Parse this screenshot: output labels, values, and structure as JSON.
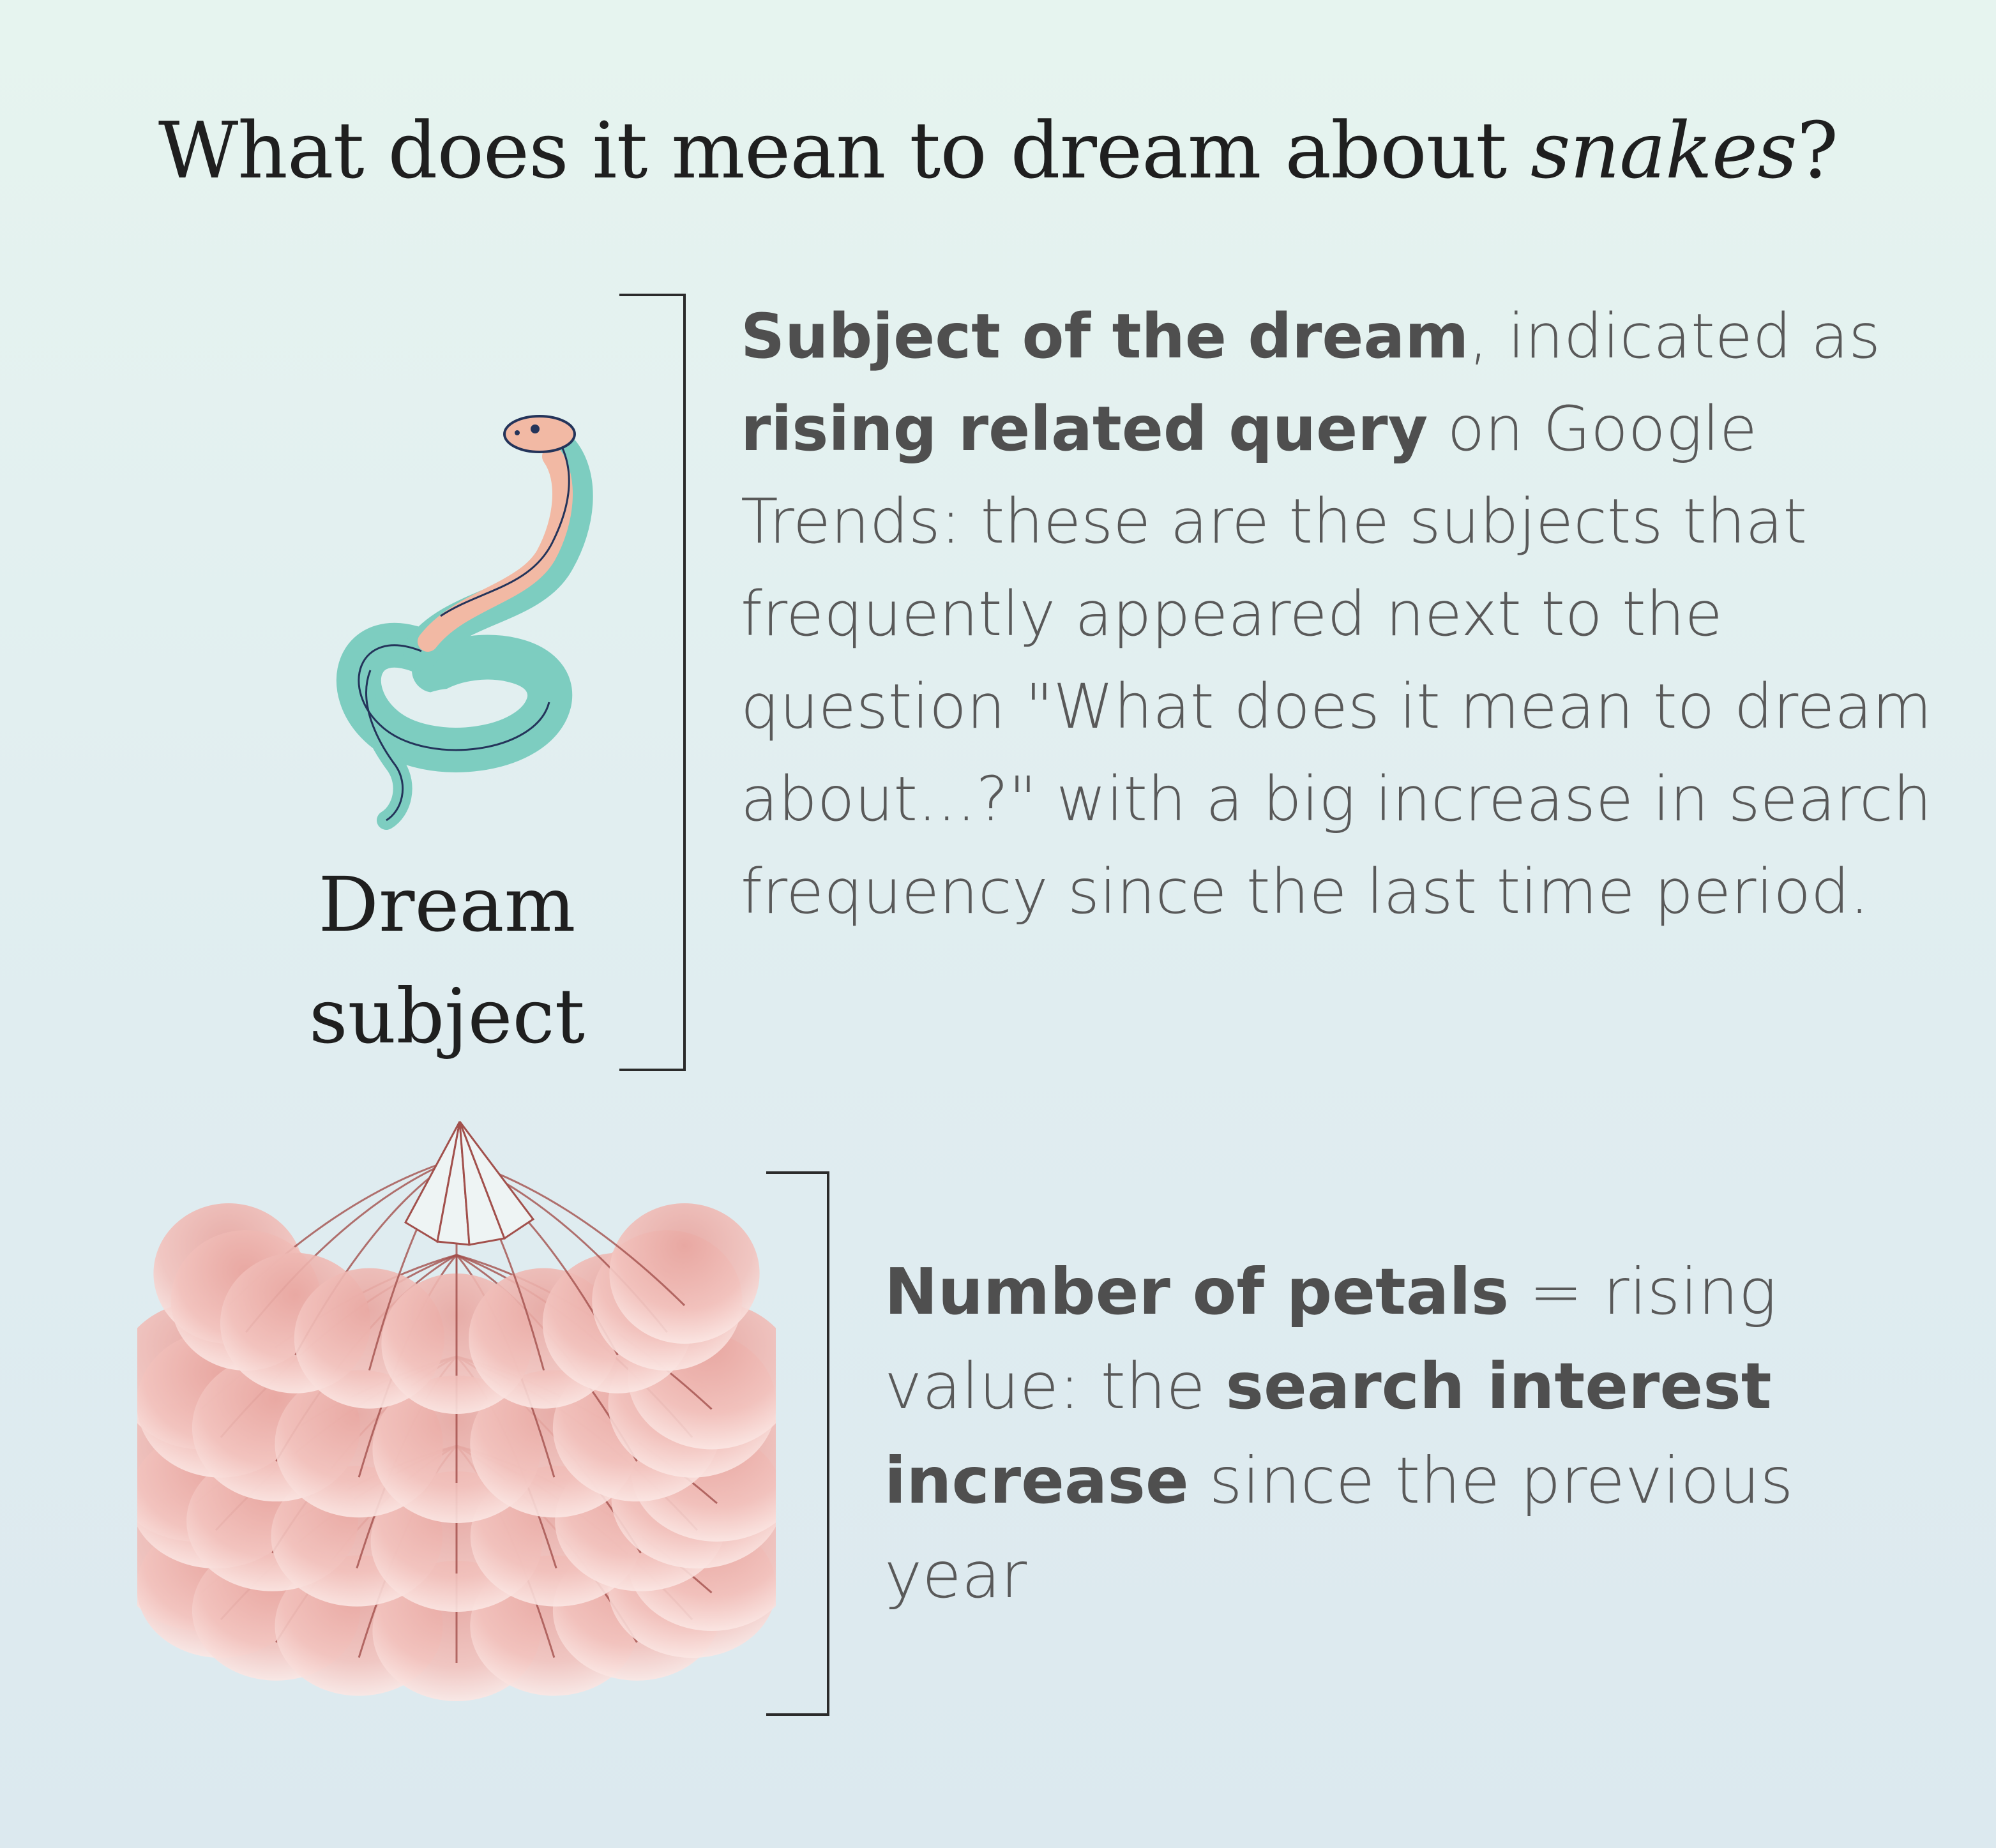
{
  "title": {
    "prefix": "What does it mean to dream about ",
    "emphasis": "snakes",
    "suffix": "?"
  },
  "subject_block": {
    "label_line1": "Dream",
    "label_line2": "subject",
    "icon": "snake-icon",
    "bold1": "Subject of the dream",
    "text1": ", indicated as ",
    "bold2": "rising related query",
    "text2": " on Google Trends: these are the subjects that frequently appeared next to the question \"What does it mean to dream about...?\" with a big increase in search frequency since the last time period."
  },
  "petals_block": {
    "icon": "lotus-petals-icon",
    "bold1": "Number of petals",
    "text1": " = rising value: the ",
    "bold2": "search interest increase",
    "text2": " since the previous year"
  },
  "colors": {
    "snake_body": "#7dcdc0",
    "snake_belly": "#f2b9a4",
    "petal": "#f2c2bd",
    "vein": "#a2504c",
    "bracket": "#2b2b2b"
  }
}
